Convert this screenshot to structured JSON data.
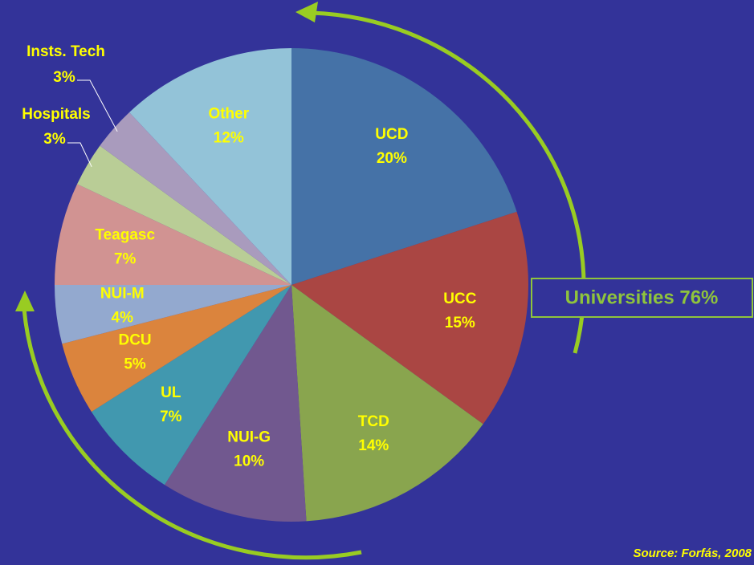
{
  "chart_data": {
    "type": "pie",
    "categories": [
      "UCD",
      "UCC",
      "TCD",
      "NUI-G",
      "UL",
      "DCU",
      "NUI-M",
      "Teagasc",
      "Hospitals",
      "Insts. Tech",
      "Other"
    ],
    "values": [
      20,
      15,
      14,
      10,
      7,
      5,
      4,
      7,
      3,
      3,
      12
    ],
    "value_labels": [
      "20%",
      "15%",
      "14%",
      "10%",
      "7%",
      "5%",
      "4%",
      "7%",
      "3%",
      "3%",
      "12%"
    ],
    "colors": [
      "#4572a7",
      "#aa4643",
      "#89a54e",
      "#71588f",
      "#4198af",
      "#db843d",
      "#93a9cf",
      "#d19392",
      "#b9cd96",
      "#a99bbd",
      "#93c3d8"
    ],
    "annotation": "Universities 76%",
    "source": "Source: Forfás, 2008"
  }
}
